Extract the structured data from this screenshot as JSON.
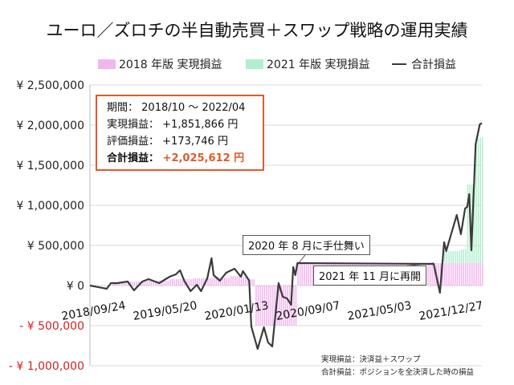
{
  "title": "ユーロ／ズロチの半自動売買＋スワップ戦略の運用実績",
  "info_box": {
    "period_label": "期間：",
    "period_value": "2018/10 ～ 2022/04",
    "realized_label": "実現損益：",
    "realized_value": "+1,851,866 円",
    "unrealized_label": "評価損益：",
    "unrealized_value": "+173,746 円",
    "total_label": "合計損益：",
    "total_value": "+2,025,612 円"
  },
  "annotations": [
    "2020 年 8 月に手仕舞い",
    "2021 年 11 月に再開"
  ],
  "notes": [
    "実現損益：決済益＋スワップ",
    "合計損益：ポジションを全決済した時の損益"
  ],
  "colors": {
    "realized_2018": "#f2b6ee",
    "realized_2021": "#b0efcc",
    "total": "#3a3a3a",
    "accent": "#e05a2b",
    "negative_label": "#d42020"
  },
  "chart_data": {
    "type": "bar+line",
    "title": "ユーロ／ズロチの半自動売買＋スワップ戦略の運用実績",
    "legend_position": "top",
    "grid": true,
    "ylim": [
      -1000000,
      2500000
    ],
    "y_ticks": [
      2500000,
      2000000,
      1500000,
      1000000,
      500000,
      0,
      -500000,
      -1000000
    ],
    "y_tick_labels": [
      "¥ 2,500,000",
      "¥ 2,000,000",
      "¥ 1,500,000",
      "¥ 1,000,000",
      "¥ 500,000",
      "¥ 0",
      "- ¥ 500,000",
      "- ¥ 1,000,000"
    ],
    "x_tick_labels": [
      "2018/09/24",
      "2019/05/20",
      "2020/01/13",
      "2020/09/07",
      "2021/05/03",
      "2021/12/27"
    ],
    "x_range": [
      "2018-09-24",
      "2022-04-25"
    ],
    "series": [
      {
        "name": "2018 年版 実現損益",
        "type": "bar",
        "step_points": [
          [
            "2018-09-24",
            0
          ],
          [
            "2018-12-10",
            30000
          ],
          [
            "2019-01-28",
            50000
          ],
          [
            "2019-04-08",
            60000
          ],
          [
            "2019-06-17",
            80000
          ],
          [
            "2019-09-02",
            90000
          ],
          [
            "2019-11-04",
            100000
          ],
          [
            "2020-01-06",
            120000
          ],
          [
            "2020-02-17",
            110000
          ],
          [
            "2020-03-09",
            80000
          ],
          [
            "2020-03-30",
            -500000
          ],
          [
            "2020-08-17",
            280000
          ],
          [
            "2022-04-25",
            280000
          ]
        ]
      },
      {
        "name": "2021 年版 実現損益",
        "type": "bar",
        "step_points": [
          [
            "2018-09-24",
            0
          ],
          [
            "2021-12-20",
            150000
          ],
          [
            "2022-02-14",
            170000
          ],
          [
            "2022-03-07",
            980000
          ],
          [
            "2022-04-04",
            1560000
          ],
          [
            "2022-04-25",
            1572000
          ]
        ]
      },
      {
        "name": "合計損益",
        "type": "line",
        "points": [
          [
            "2018-09-24",
            0
          ],
          [
            "2018-11-19",
            -40000
          ],
          [
            "2018-12-03",
            30000
          ],
          [
            "2018-12-24",
            30000
          ],
          [
            "2019-01-28",
            50000
          ],
          [
            "2019-02-18",
            -60000
          ],
          [
            "2019-03-18",
            50000
          ],
          [
            "2019-04-08",
            80000
          ],
          [
            "2019-05-13",
            30000
          ],
          [
            "2019-06-17",
            110000
          ],
          [
            "2019-07-08",
            140000
          ],
          [
            "2019-07-22",
            190000
          ],
          [
            "2019-08-05",
            60000
          ],
          [
            "2019-08-26",
            -70000
          ],
          [
            "2019-09-16",
            10000
          ],
          [
            "2019-09-30",
            -70000
          ],
          [
            "2019-10-21",
            90000
          ],
          [
            "2019-11-04",
            340000
          ],
          [
            "2019-11-11",
            130000
          ],
          [
            "2019-12-02",
            60000
          ],
          [
            "2019-12-23",
            160000
          ],
          [
            "2020-01-20",
            210000
          ],
          [
            "2020-02-10",
            110000
          ],
          [
            "2020-02-17",
            180000
          ],
          [
            "2020-03-09",
            60000
          ],
          [
            "2020-03-16",
            -510000
          ],
          [
            "2020-04-06",
            -790000
          ],
          [
            "2020-04-27",
            -520000
          ],
          [
            "2020-05-11",
            -710000
          ],
          [
            "2020-05-25",
            -760000
          ],
          [
            "2020-06-15",
            30000
          ],
          [
            "2020-06-29",
            -140000
          ],
          [
            "2020-07-13",
            -160000
          ],
          [
            "2020-07-27",
            -240000
          ],
          [
            "2020-08-03",
            230000
          ],
          [
            "2020-08-10",
            130000
          ],
          [
            "2020-08-17",
            280000
          ],
          [
            "2021-11-15",
            270000
          ],
          [
            "2021-12-06",
            -90000
          ],
          [
            "2021-12-20",
            540000
          ],
          [
            "2021-12-27",
            430000
          ],
          [
            "2022-01-24",
            790000
          ],
          [
            "2022-01-31",
            880000
          ],
          [
            "2022-02-14",
            640000
          ],
          [
            "2022-02-28",
            960000
          ],
          [
            "2022-03-07",
            980000
          ],
          [
            "2022-03-14",
            1140000
          ],
          [
            "2022-03-21",
            440000
          ],
          [
            "2022-04-04",
            1760000
          ],
          [
            "2022-04-18",
            2010000
          ],
          [
            "2022-04-25",
            2025612
          ]
        ]
      }
    ]
  }
}
